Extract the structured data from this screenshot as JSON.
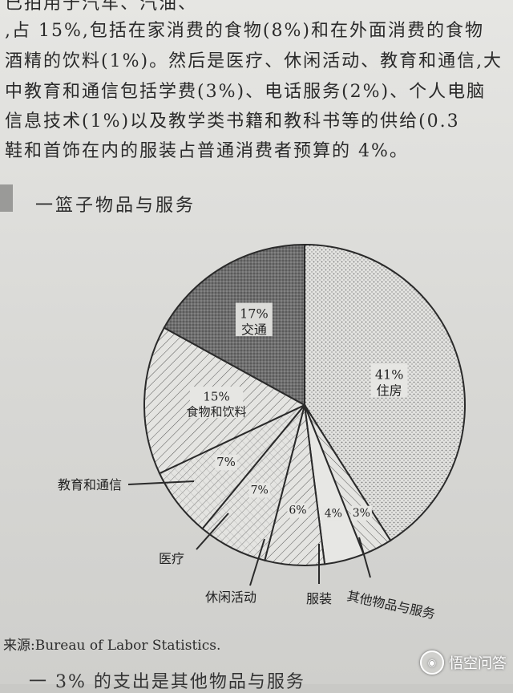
{
  "body_text": {
    "lines": [
      "已拍用于汽车、汽油、",
      ",占 15%,包括在家消费的食物(8%)和在外面消费的食物",
      "酒精的饮料(1%)。然后是医疗、休闲活动、教育和通信,大",
      "中教育和通信包括学费(3%)、电话服务(2%)、个人电脑",
      "信息技术(1%)以及教学类书籍和教科书等的供给(0.3",
      "鞋和首饰在内的服装占普通消费者预算的 4%。"
    ]
  },
  "heading": "一篮子物品与服务",
  "chart_data": {
    "type": "pie",
    "title": "",
    "slices": [
      {
        "label": "住房",
        "value": 41,
        "percent_label": "41%",
        "pattern": "dots"
      },
      {
        "label": "其他物品与服务",
        "value": 3,
        "percent_label": "3%",
        "pattern": "hatch-right"
      },
      {
        "label": "服装",
        "value": 4,
        "percent_label": "4%",
        "pattern": "blank"
      },
      {
        "label": "休闲活动",
        "value": 6,
        "percent_label": "6%",
        "pattern": "hatch-left"
      },
      {
        "label": "医疗",
        "value": 7,
        "percent_label": "7%",
        "pattern": "grid"
      },
      {
        "label": "教育和通信",
        "value": 7,
        "percent_label": "7%",
        "pattern": "grid"
      },
      {
        "label": "食物和饮料",
        "value": 15,
        "percent_label": "15%",
        "pattern": "hatch-left"
      },
      {
        "label": "交通",
        "value": 17,
        "percent_label": "17%",
        "pattern": "dark-dots"
      }
    ],
    "legend": "none"
  },
  "source": "来源:Bureau of Labor Statistics.",
  "bottom_text": "一 3% 的支出是其他物品与服务",
  "watermark": {
    "icon": "chat-bubble-icon",
    "text": "悟空问答"
  }
}
